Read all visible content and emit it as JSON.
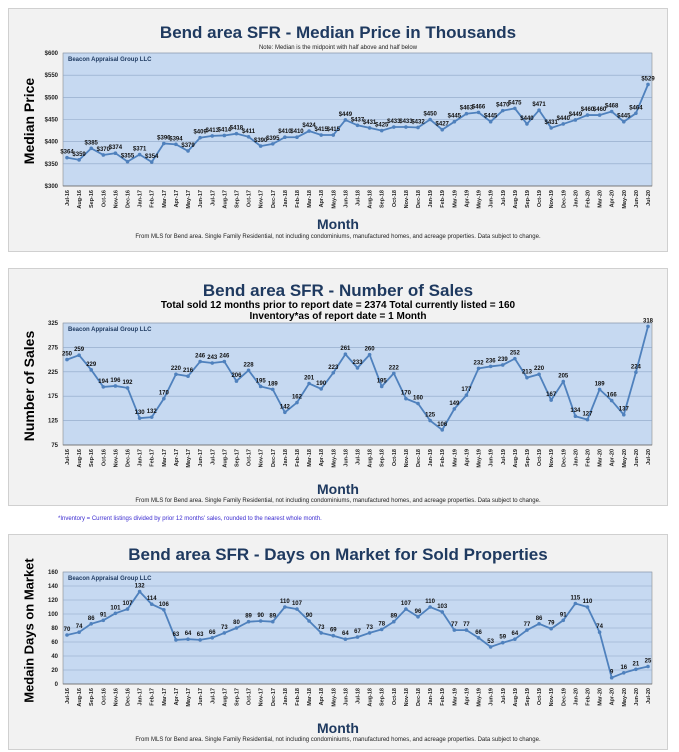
{
  "months": [
    "Jul-16",
    "Aug-16",
    "Sep-16",
    "Oct-16",
    "Nov-16",
    "Dec-16",
    "Jan-17",
    "Feb-17",
    "Mar-17",
    "Apr-17",
    "May-17",
    "Jun-17",
    "Jul-17",
    "Aug-17",
    "Sep-17",
    "Oct-17",
    "Nov-17",
    "Dec-17",
    "Jan-18",
    "Feb-18",
    "Mar-18",
    "Apr-18",
    "May-18",
    "Jun-18",
    "Jul-18",
    "Aug-18",
    "Sep-18",
    "Oct-18",
    "Nov-18",
    "Dec-18",
    "Jan-19",
    "Feb-19",
    "Mar-19",
    "Apr-19",
    "May-19",
    "Jun-19",
    "Jul-19",
    "Aug-19",
    "Sep-19",
    "Oct-19",
    "Nov-19",
    "Dec-19",
    "Jan-20",
    "Feb-20",
    "Mar-20",
    "Apr-20",
    "May-20",
    "Jun-20",
    "Jul-20"
  ],
  "colors": {
    "plot_bg": "#c6d9f1",
    "line": "#4f81bd",
    "title": "#1f3a60",
    "watermark": "#1f3a60",
    "footnote_link": "#3b2bd0"
  },
  "chart_data": [
    {
      "type": "line",
      "title": "Bend area SFR - Median Price in Thousands",
      "note": "Note: Median is the midpoint with half above and half below",
      "watermark": "Beacon Appraisal Group LLC",
      "xlabel": "Month",
      "ylabel": "Median Price",
      "footnote": "From MLS for Bend area.  Single Family Residential, not including condominiums, manufactured homes, and acreage properties.  Data subject to change.",
      "ylim": [
        300,
        600
      ],
      "yticks": [
        300,
        350,
        400,
        450,
        500,
        550,
        600
      ],
      "ytick_labels": [
        "$300",
        "$350",
        "$400",
        "$450",
        "$500",
        "$550",
        "$600"
      ],
      "label_prefix": "$",
      "grid": true,
      "values": [
        364,
        359,
        385,
        370,
        374,
        355,
        371,
        354,
        396,
        394,
        379,
        409,
        413,
        414,
        418,
        411,
        390,
        395,
        410,
        410,
        424,
        415,
        415,
        449,
        437,
        431,
        425,
        433,
        433,
        432,
        450,
        427,
        445,
        463,
        466,
        445,
        470,
        475,
        440,
        471,
        431,
        440,
        449,
        460,
        460,
        468,
        445,
        464,
        529
      ]
    },
    {
      "type": "line",
      "title": "Bend area SFR - Number of Sales",
      "subtitle": "Total sold 12 months prior to report date = 2374 Total currently listed = 160",
      "subtitle2": "Inventory*as of report date = 1 Month",
      "watermark": "Beacon Appraisal Group LLC",
      "xlabel": "Month",
      "ylabel": "Number of Sales",
      "footnote": "From MLS for Bend area.  Single Family Residential, not including condominiums, manufactured homes, and acreage properties.  Data subject to change.",
      "inventory_note": "*Inventory = Current listings divided by prior 12 months' sales, rounded to the nearest whole month.",
      "ylim": [
        75,
        325
      ],
      "yticks": [
        75,
        125,
        175,
        225,
        275,
        325
      ],
      "ytick_labels": [
        "75",
        "125",
        "175",
        "225",
        "275",
        "325"
      ],
      "label_prefix": "",
      "grid": true,
      "values": [
        250,
        259,
        229,
        194,
        196,
        192,
        130,
        132,
        170,
        220,
        216,
        246,
        243,
        246,
        206,
        228,
        195,
        189,
        142,
        162,
        201,
        190,
        223,
        261,
        233,
        260,
        195,
        222,
        170,
        160,
        125,
        106,
        149,
        177,
        232,
        236,
        239,
        252,
        213,
        220,
        167,
        205,
        134,
        127,
        189,
        166,
        137,
        224,
        318
      ]
    },
    {
      "type": "line",
      "title": "Bend area SFR - Days on Market for Sold Properties",
      "watermark": "Beacon Appraisal Group LLC",
      "xlabel": "Month",
      "ylabel": "Medain Days on Market",
      "footnote": "From MLS for Bend area.  Single Family Residential, not including condominiums, manufactured homes, and acreage properties.  Data subject to change.",
      "ylim": [
        0,
        160
      ],
      "yticks": [
        0,
        20,
        40,
        60,
        80,
        100,
        120,
        140,
        160
      ],
      "ytick_labels": [
        "0",
        "20",
        "40",
        "60",
        "80",
        "100",
        "120",
        "140",
        "160"
      ],
      "label_prefix": "",
      "grid": true,
      "values": [
        70,
        74,
        86,
        91,
        101,
        107,
        132,
        114,
        106,
        63,
        64,
        63,
        66,
        73,
        80,
        89,
        90,
        89,
        110,
        107,
        90,
        73,
        69,
        64,
        67,
        73,
        78,
        89,
        107,
        96,
        110,
        103,
        77,
        77,
        66,
        53,
        59,
        64,
        77,
        86,
        79,
        91,
        115,
        110,
        74,
        9,
        16,
        21,
        25
      ]
    }
  ]
}
